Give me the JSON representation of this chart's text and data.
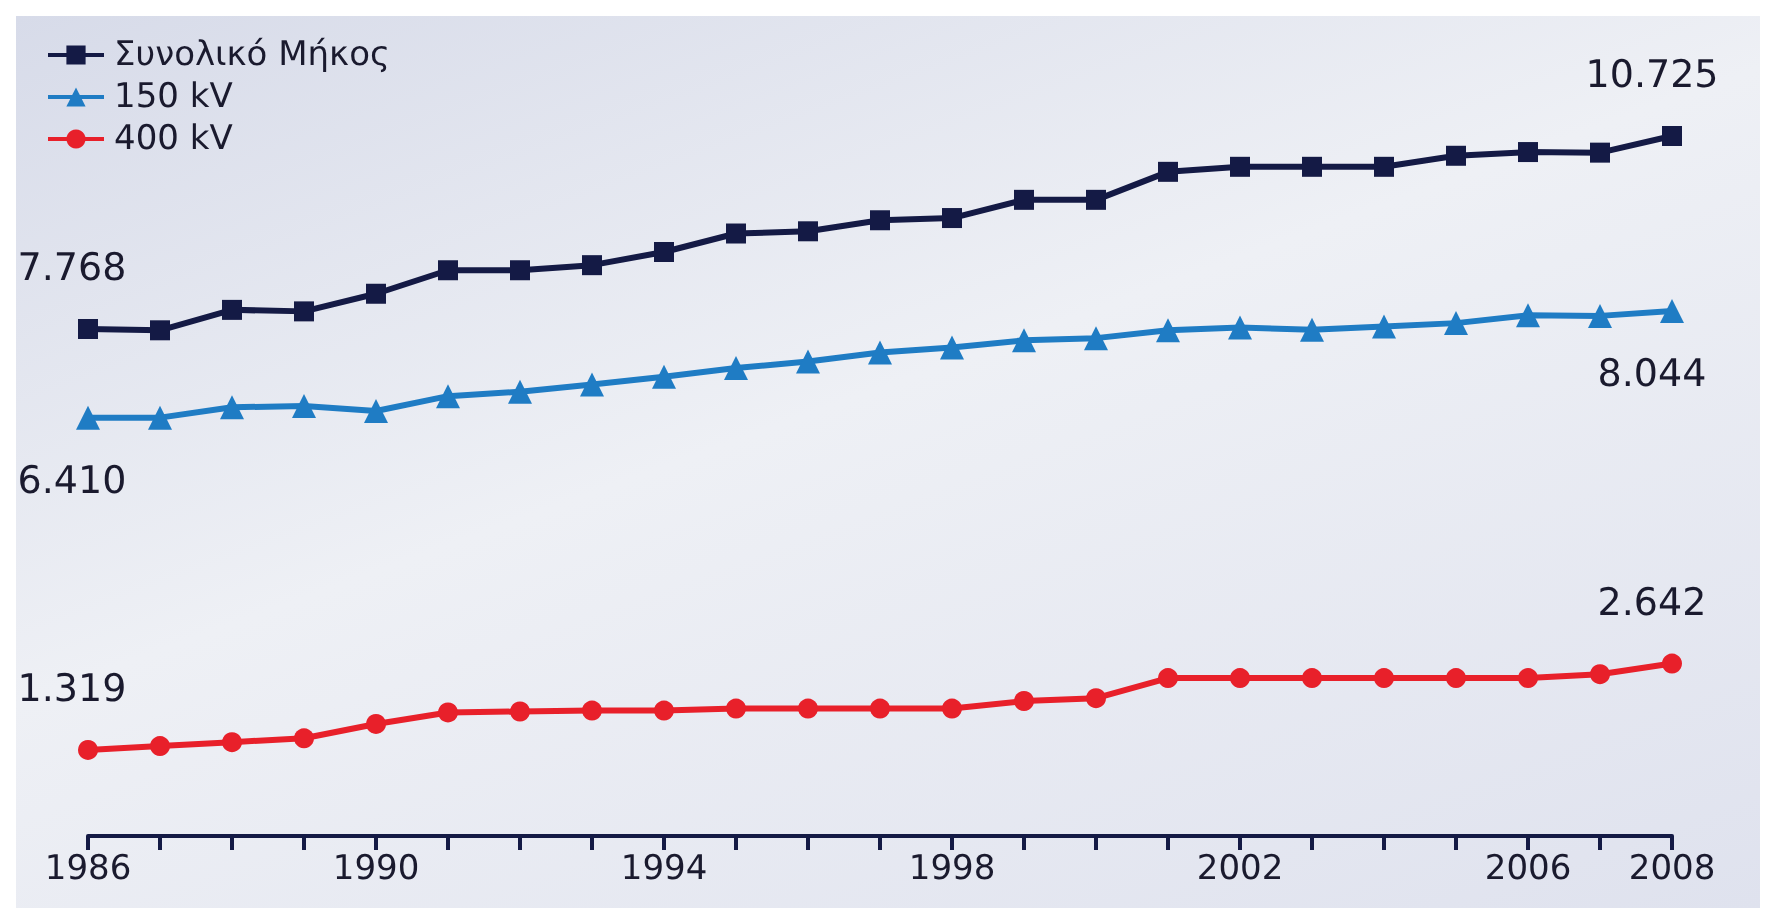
{
  "chart_data": {
    "type": "line",
    "x": [
      1986,
      1987,
      1988,
      1989,
      1990,
      1991,
      1992,
      1993,
      1994,
      1995,
      1996,
      1997,
      1998,
      1999,
      2000,
      2001,
      2002,
      2003,
      2004,
      2005,
      2006,
      2007,
      2008
    ],
    "xlim": [
      1986,
      2008
    ],
    "xticks": [
      1986,
      {
        "value": 1987,
        "label": null
      },
      {
        "value": 1988,
        "label": null
      },
      {
        "value": 1989,
        "label": null
      },
      1990,
      {
        "value": 1991,
        "label": null
      },
      {
        "value": 1992,
        "label": null
      },
      {
        "value": 1993,
        "label": null
      },
      1994,
      {
        "value": 1995,
        "label": null
      },
      {
        "value": 1996,
        "label": null
      },
      {
        "value": 1997,
        "label": null
      },
      1998,
      {
        "value": 1999,
        "label": null
      },
      {
        "value": 2000,
        "label": null
      },
      {
        "value": 2001,
        "label": null
      },
      2002,
      {
        "value": 2003,
        "label": null
      },
      {
        "value": 2004,
        "label": null
      },
      {
        "value": 2005,
        "label": null
      },
      2006,
      {
        "value": 2007,
        "label": null
      },
      2008
    ],
    "series": [
      {
        "name": "Συνολικό Μήκος",
        "color": "#141a45",
        "marker": "square",
        "values": [
          7768,
          7748,
          8061,
          8038,
          8308,
          8668,
          8668,
          8746,
          8948,
          9231,
          9265,
          9434,
          9468,
          9747,
          9747,
          10176,
          10253,
          10253,
          10253,
          10422,
          10479,
          10470,
          10725
        ],
        "value_labels": [
          "7.768",
          null,
          null,
          null,
          null,
          null,
          null,
          null,
          null,
          null,
          null,
          null,
          null,
          null,
          null,
          null,
          null,
          null,
          null,
          null,
          null,
          null,
          "10.725"
        ]
      },
      {
        "name": "150 kV",
        "color": "#1f7cc4",
        "marker": "triangle",
        "values": [
          6410,
          6410,
          6569,
          6587,
          6511,
          6739,
          6808,
          6916,
          7035,
          7169,
          7270,
          7408,
          7484,
          7595,
          7628,
          7749,
          7792,
          7757,
          7808,
          7858,
          7977,
          7969,
          8044
        ],
        "value_labels": [
          "6.410",
          null,
          null,
          null,
          null,
          null,
          null,
          null,
          null,
          null,
          null,
          null,
          null,
          null,
          null,
          null,
          null,
          null,
          null,
          null,
          null,
          null,
          "8.044"
        ]
      },
      {
        "name": "400 kV",
        "color": "#e8202a",
        "marker": "circle",
        "values": [
          1319,
          1378,
          1438,
          1497,
          1717,
          1893,
          1908,
          1921,
          1921,
          1952,
          1952,
          1952,
          1952,
          2068,
          2112,
          2420,
          2420,
          2420,
          2420,
          2420,
          2420,
          2479,
          2642
        ],
        "value_labels": [
          "1.319",
          null,
          null,
          null,
          null,
          null,
          null,
          null,
          null,
          null,
          null,
          null,
          null,
          null,
          null,
          null,
          null,
          null,
          null,
          null,
          null,
          null,
          "2.642"
        ]
      }
    ],
    "legend": "top left",
    "grid": false,
    "line_style": "solid"
  }
}
